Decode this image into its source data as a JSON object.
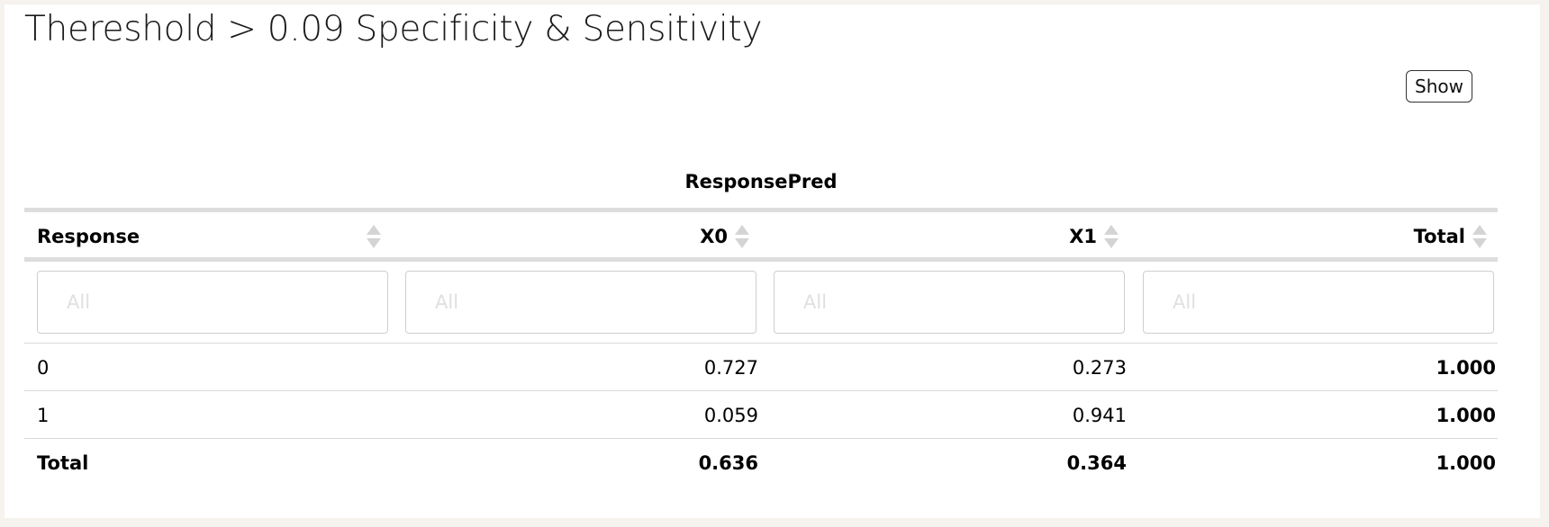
{
  "title": "Thereshold > 0.09 Specificity & Sensitivity",
  "show_button": "Show",
  "table": {
    "group_header": "ResponsePred",
    "columns": [
      {
        "label": "Response"
      },
      {
        "label": "X0"
      },
      {
        "label": "X1"
      },
      {
        "label": "Total"
      }
    ],
    "filter_placeholder": "All",
    "rows": [
      {
        "response": "0",
        "x0": "0.727",
        "x1": "0.273",
        "total": "1.000"
      },
      {
        "response": "1",
        "x0": "0.059",
        "x1": "0.941",
        "total": "1.000"
      },
      {
        "response": "Total",
        "x0": "0.636",
        "x1": "0.364",
        "total": "1.000"
      }
    ]
  }
}
